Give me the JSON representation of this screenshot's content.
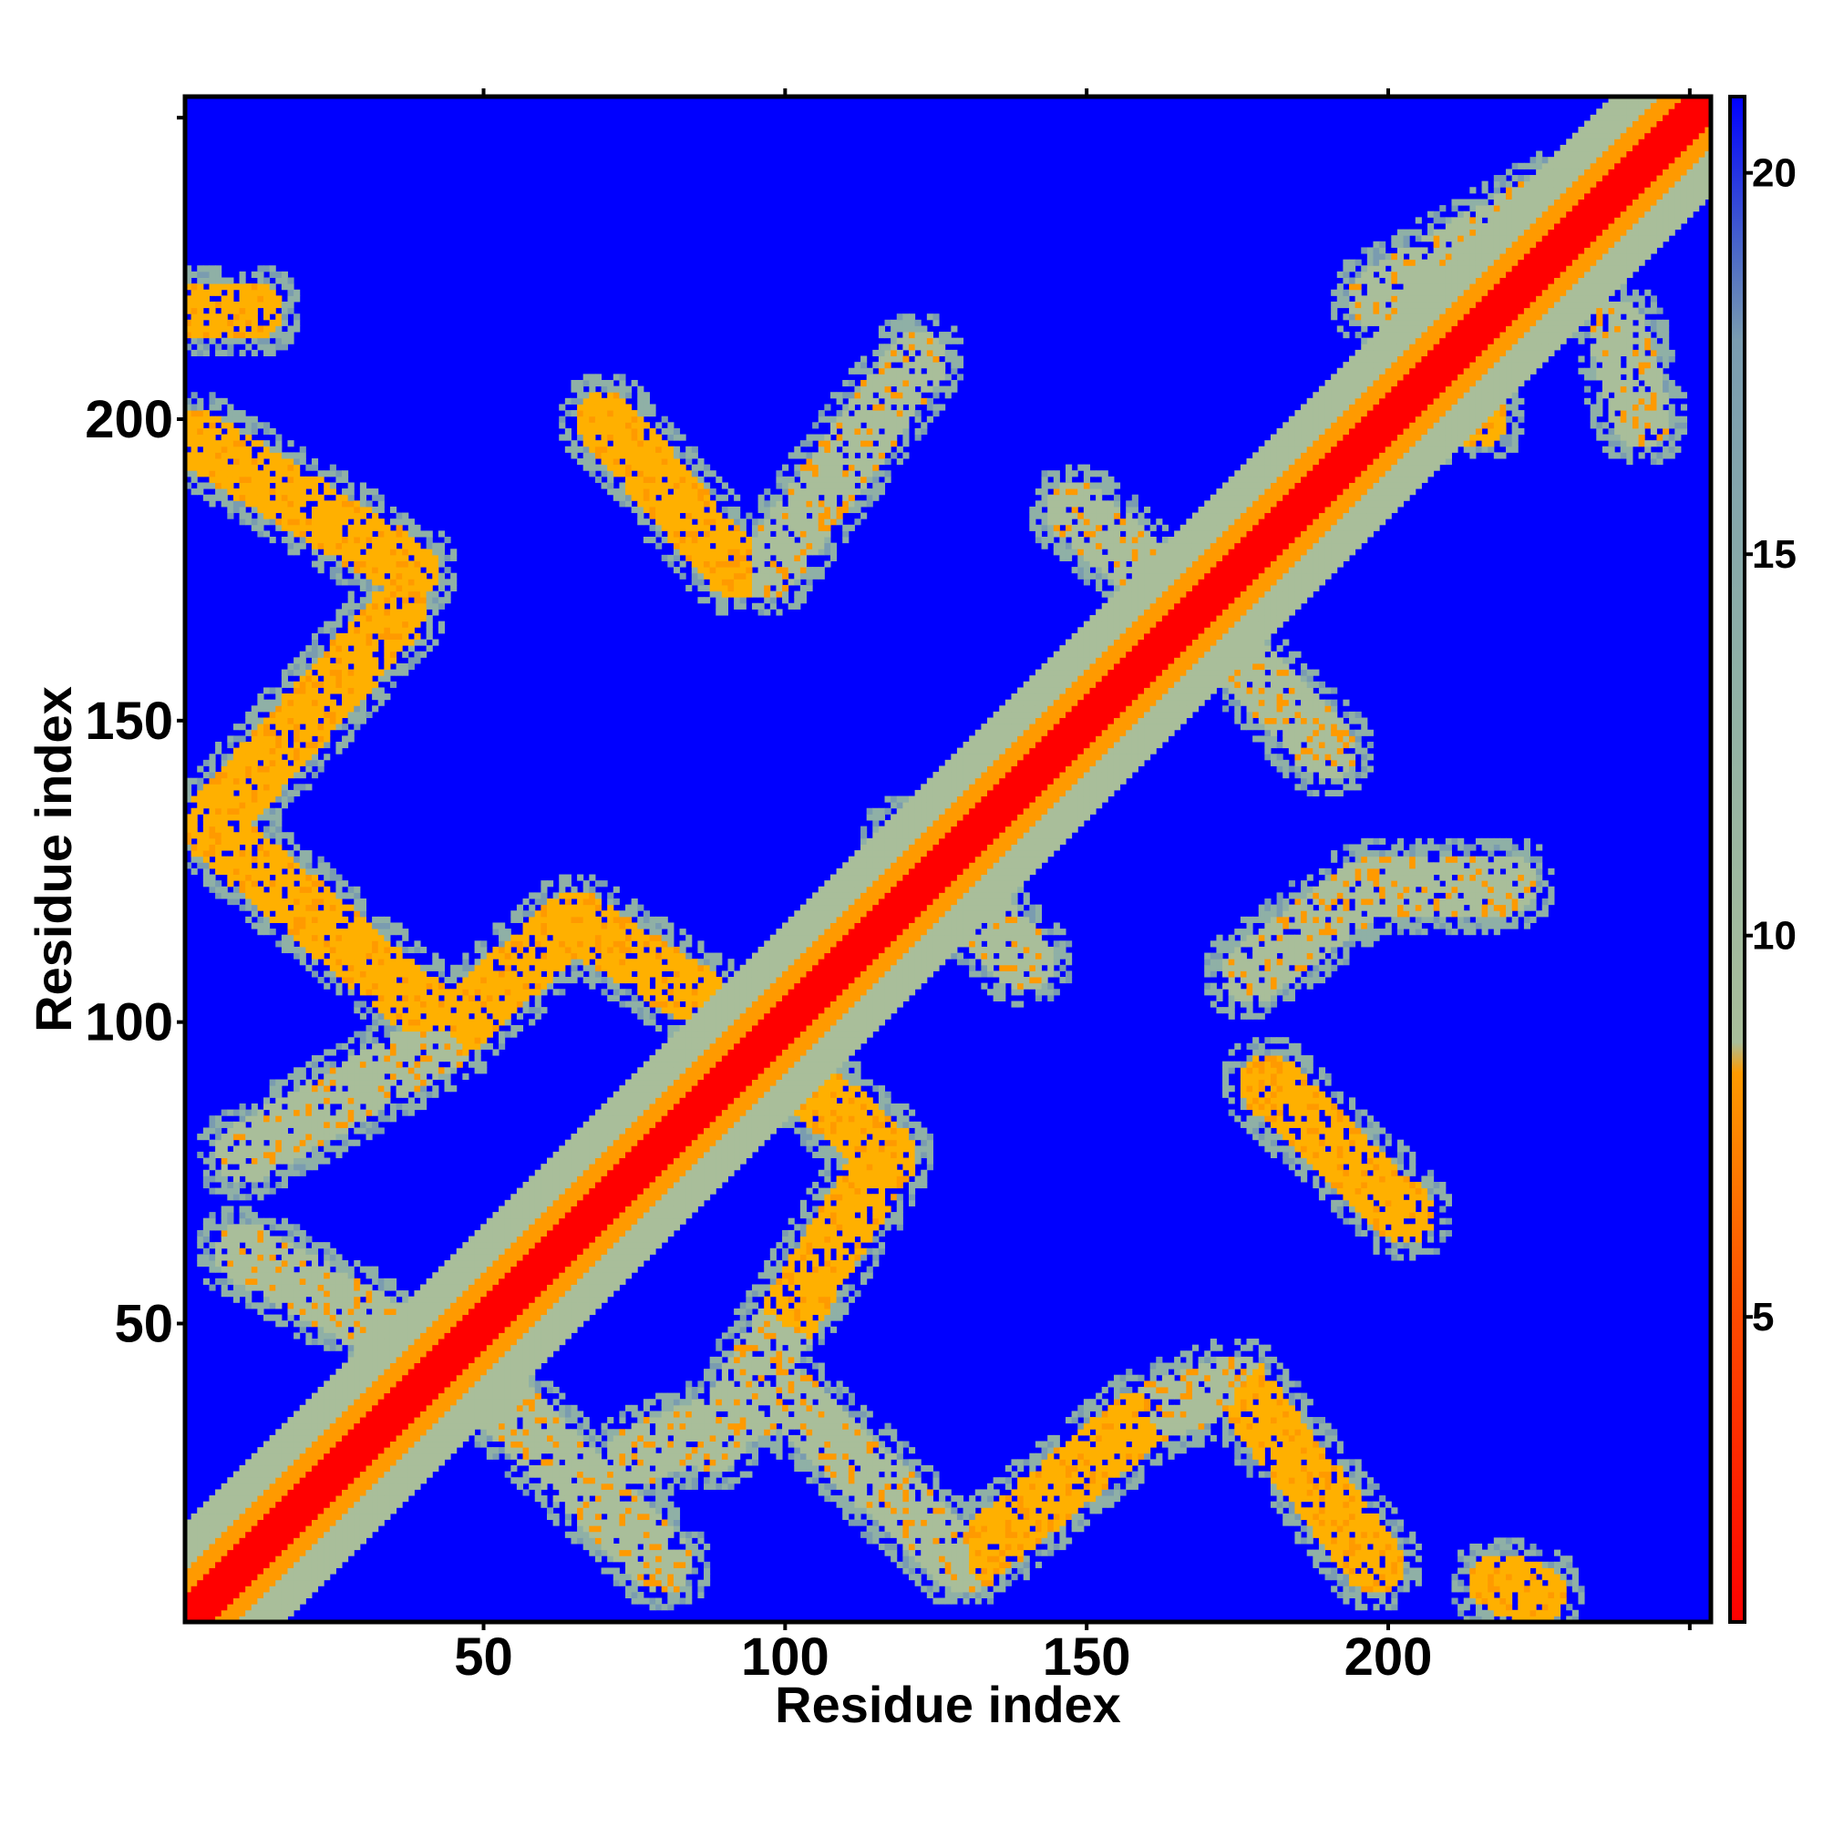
{
  "chart_data": {
    "type": "heatmap",
    "title": "",
    "xlabel": "Residue index",
    "ylabel": "Residue index",
    "n_residues": 253,
    "xlim": [
      1,
      253
    ],
    "ylim": [
      1,
      253
    ],
    "x_ticks": [
      50,
      100,
      150,
      200
    ],
    "y_ticks": [
      50,
      100,
      150,
      200
    ],
    "colorbar": {
      "range": [
        1,
        21
      ],
      "ticks": [
        5,
        10,
        15,
        20
      ],
      "colors": [
        "#ff0000",
        "#ff4a00",
        "#ff9a00",
        "#a9be9a",
        "#7a9cb0",
        "#0000ff"
      ]
    },
    "background_value": 21,
    "diagonal": {
      "core_value": 3,
      "inner_value": 6,
      "outer_value": 10,
      "core_width": 4,
      "inner_width": 8,
      "outer_width": 16
    },
    "contact_bands": [
      {
        "from": [
          2,
          218
        ],
        "to": [
          12,
          218
        ],
        "value": 9
      },
      {
        "from": [
          2,
          197
        ],
        "to": [
          38,
          175
        ],
        "value": 9
      },
      {
        "from": [
          36,
          168
        ],
        "to": [
          5,
          133
        ],
        "value": 9
      },
      {
        "from": [
          5,
          132
        ],
        "to": [
          45,
          98
        ],
        "value": 9
      },
      {
        "from": [
          45,
          98
        ],
        "to": [
          10,
          78
        ],
        "value": 10
      },
      {
        "from": [
          10,
          62
        ],
        "to": [
          50,
          40
        ],
        "value": 10
      },
      {
        "from": [
          50,
          40
        ],
        "to": [
          80,
          10
        ],
        "value": 10
      },
      {
        "from": [
          45,
          99
        ],
        "to": [
          65,
          117
        ],
        "value": 9
      },
      {
        "from": [
          65,
          117
        ],
        "to": [
          92,
          100
        ],
        "value": 9
      },
      {
        "from": [
          92,
          100
        ],
        "to": [
          117,
          78
        ],
        "value": 9
      },
      {
        "from": [
          117,
          78
        ],
        "to": [
          100,
          50
        ],
        "value": 9
      },
      {
        "from": [
          100,
          50
        ],
        "to": [
          88,
          30
        ],
        "value": 10
      },
      {
        "from": [
          70,
          200
        ],
        "to": [
          92,
          175
        ],
        "value": 9
      },
      {
        "from": [
          97,
          175
        ],
        "to": [
          122,
          210
        ],
        "value": 10
      },
      {
        "from": [
          75,
          28
        ],
        "to": [
          100,
          38
        ],
        "value": 10
      },
      {
        "from": [
          100,
          38
        ],
        "to": [
          130,
          10
        ],
        "value": 10
      },
      {
        "from": [
          130,
          10
        ],
        "to": [
          160,
          35
        ],
        "value": 9
      },
      {
        "from": [
          160,
          35
        ],
        "to": [
          175,
          40
        ],
        "value": 10
      },
      {
        "from": [
          175,
          40
        ],
        "to": [
          198,
          10
        ],
        "value": 9
      },
      {
        "from": [
          148,
          185
        ],
        "to": [
          160,
          175
        ],
        "value": 10
      },
      {
        "from": [
          168,
          168
        ],
        "to": [
          190,
          145
        ],
        "value": 10
      },
      {
        "from": [
          120,
          130
        ],
        "to": [
          140,
          110
        ],
        "value": 10
      },
      {
        "from": [
          180,
          90
        ],
        "to": [
          203,
          68
        ],
        "value": 9
      },
      {
        "from": [
          177,
          108
        ],
        "to": [
          196,
          122
        ],
        "value": 10
      },
      {
        "from": [
          196,
          122
        ],
        "to": [
          220,
          123
        ],
        "value": 10
      },
      {
        "from": [
          200,
          202
        ],
        "to": [
          215,
          200
        ],
        "value": 9
      },
      {
        "from": [
          198,
          220
        ],
        "to": [
          228,
          237
        ],
        "value": 10
      },
      {
        "from": [
          238,
          215
        ],
        "to": [
          242,
          200
        ],
        "value": 11
      },
      {
        "from": [
          218,
          7
        ],
        "to": [
          225,
          5
        ],
        "value": 9
      }
    ]
  }
}
